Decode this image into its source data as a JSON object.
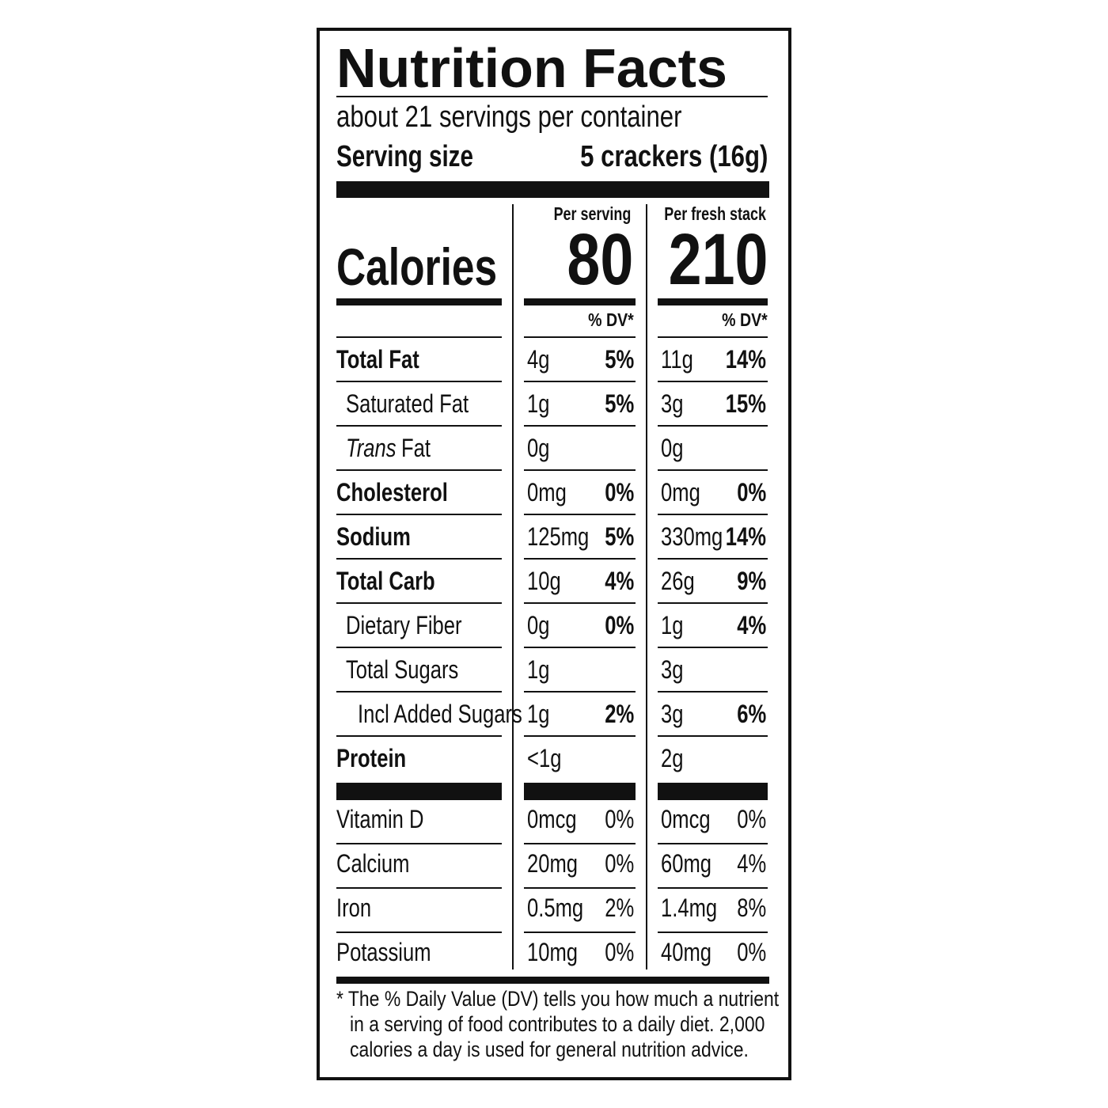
{
  "title": "Nutrition Facts",
  "servings": "about 21 servings per container",
  "serving_size_label": "Serving size",
  "serving_size": "5 crackers (16g)",
  "columns": [
    "Per serving",
    "Per fresh stack"
  ],
  "calories_label": "Calories",
  "calories": [
    "80",
    "210"
  ],
  "dv_headers": [
    "% DV*",
    "% DV*"
  ],
  "nutrients": [
    {
      "name": "Total Fat",
      "serving": [
        "4g",
        "5%"
      ],
      "stack": [
        "11g",
        "14%"
      ]
    },
    {
      "name": "Saturated Fat",
      "serving": [
        "1g",
        "5%"
      ],
      "stack": [
        "3g",
        "15%"
      ]
    },
    {
      "name_italic": "Trans",
      "name": "Fat",
      "serving": [
        "0g"
      ],
      "stack": [
        "0g"
      ]
    },
    {
      "name": "Cholesterol",
      "serving": [
        "0mg",
        "0%"
      ],
      "stack": [
        "0mg",
        "0%"
      ]
    },
    {
      "name": "Sodium",
      "serving": [
        "125mg",
        "5%"
      ],
      "stack": [
        "330mg",
        "14%"
      ]
    },
    {
      "name": "Total Carb",
      "serving": [
        "10g",
        "4%"
      ],
      "stack": [
        "26g",
        "9%"
      ]
    },
    {
      "name": "Dietary Fiber",
      "serving": [
        "0g",
        "0%"
      ],
      "stack": [
        "1g",
        "4%"
      ]
    },
    {
      "name": "Total Sugars",
      "serving": [
        "1g"
      ],
      "stack": [
        "3g"
      ]
    },
    {
      "name": "Incl Added Sugars",
      "serving": [
        "1g",
        "2%"
      ],
      "stack": [
        "3g",
        "6%"
      ]
    },
    {
      "name": "Protein",
      "serving": [
        "<1g"
      ],
      "stack": [
        "2g"
      ]
    }
  ],
  "vitamins": [
    {
      "name": "Vitamin D",
      "serving": [
        "0mcg",
        "0%"
      ],
      "stack": [
        "0mcg",
        "0%"
      ]
    },
    {
      "name": "Calcium",
      "serving": [
        "20mg",
        "0%"
      ],
      "stack": [
        "60mg",
        "4%"
      ]
    },
    {
      "name": "Iron",
      "serving": [
        "0.5mg",
        "2%"
      ],
      "stack": [
        "1.4mg",
        "8%"
      ]
    },
    {
      "name": "Potassium",
      "serving": [
        "10mg",
        "0%"
      ],
      "stack": [
        "40mg",
        "0%"
      ]
    }
  ],
  "footnote": [
    "* The % Daily Value (DV) tells you how much a nutrient",
    "in a serving of food contributes to a daily diet. 2,000",
    "calories a day is used for general nutrition advice."
  ]
}
